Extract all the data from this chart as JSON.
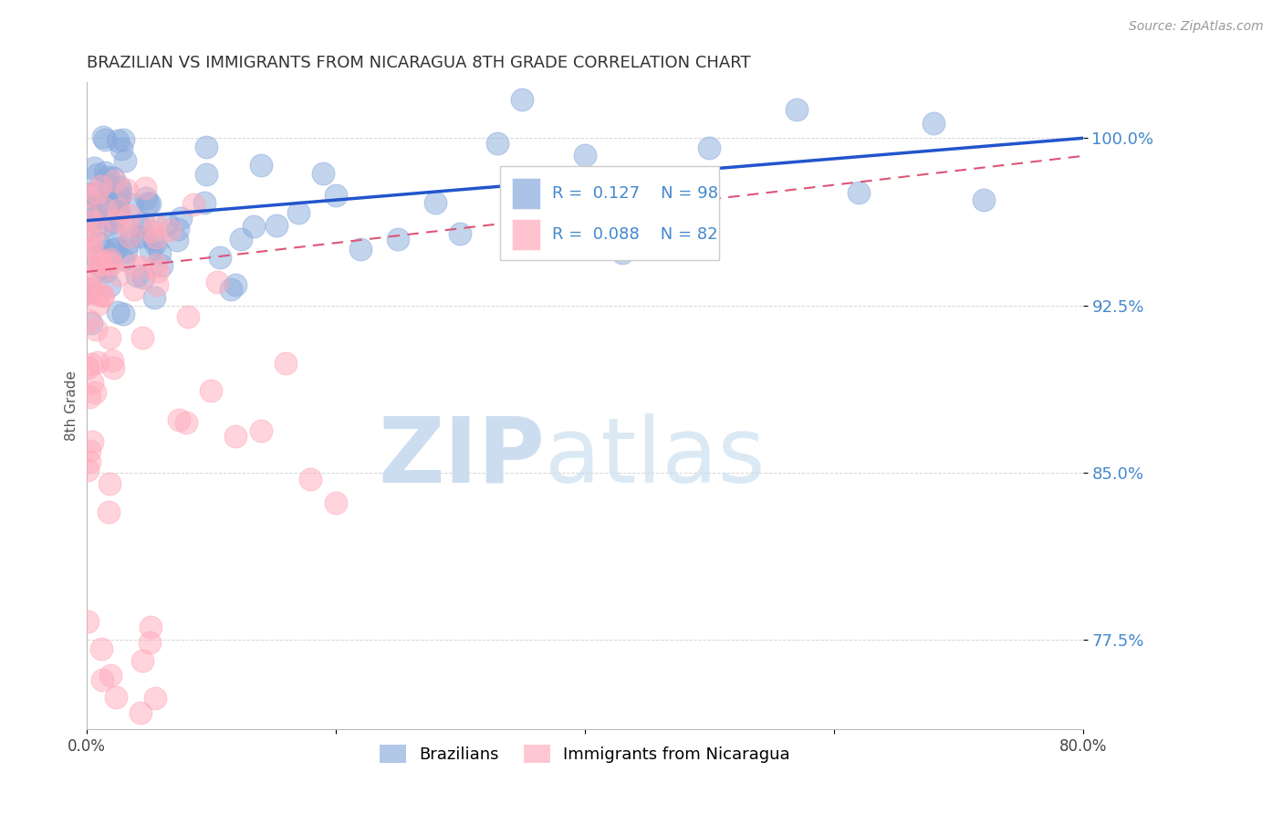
{
  "title": "BRAZILIAN VS IMMIGRANTS FROM NICARAGUA 8TH GRADE CORRELATION CHART",
  "source_text": "Source: ZipAtlas.com",
  "ylabel": "8th Grade",
  "xlim": [
    0.0,
    0.8
  ],
  "ylim": [
    0.735,
    1.025
  ],
  "yticks": [
    0.775,
    0.85,
    0.925,
    1.0
  ],
  "ytick_labels": [
    "77.5%",
    "85.0%",
    "92.5%",
    "100.0%"
  ],
  "xticks": [
    0.0,
    0.2,
    0.4,
    0.6,
    0.8
  ],
  "xtick_labels": [
    "0.0%",
    "",
    "",
    "",
    "80.0%"
  ],
  "series1_name": "Brazilians",
  "series1_color": "#88aadd",
  "series1_edge": "#6688bb",
  "series1_R": 0.127,
  "series1_N": 98,
  "series2_name": "Immigrants from Nicaragua",
  "series2_color": "#ffaabb",
  "series2_edge": "#dd7788",
  "series2_R": 0.088,
  "series2_N": 82,
  "trend1_color": "#2255cc",
  "trend2_color": "#dd5577",
  "background_color": "#ffffff",
  "grid_color": "#cccccc",
  "title_color": "#333333",
  "axis_label_color": "#555555",
  "ytick_color": "#4488cc",
  "source_color": "#999999",
  "watermark_zip_color": "#ccddf0",
  "watermark_atlas_color": "#cce0f0"
}
